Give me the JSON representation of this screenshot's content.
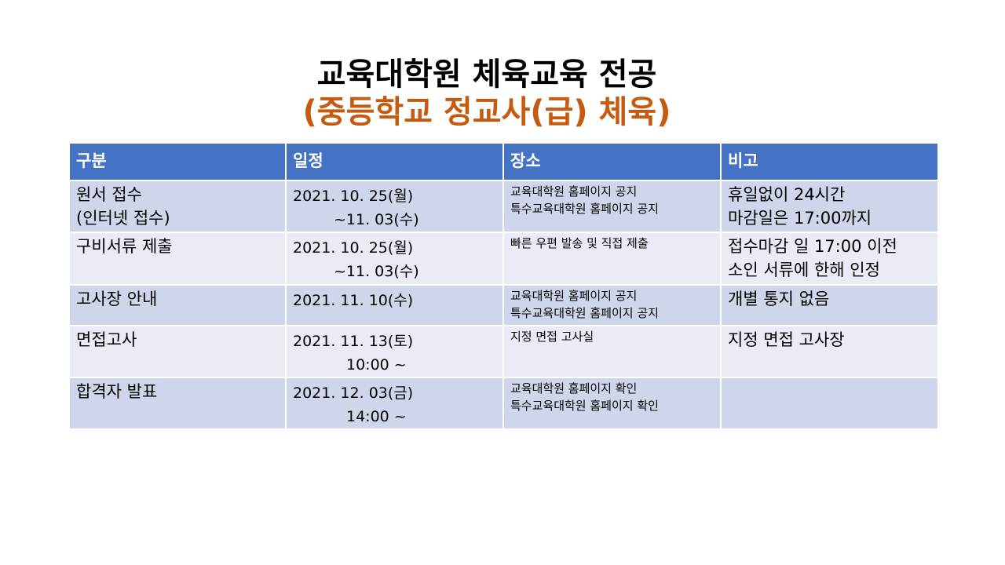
{
  "title": "교육대학원 체육교육 전공",
  "subtitle": "(중등학교 정교사(급) 체육)",
  "colors": {
    "title": "#000000",
    "subtitle": "#c55a11",
    "header_bg": "#4472c4",
    "row_odd": "#cfd5ea",
    "row_even": "#e9ebf5"
  },
  "table": {
    "headers": [
      "구분",
      "일정",
      "장소",
      "비고"
    ],
    "rows": [
      {
        "category": [
          "원서 접수",
          "(인터넷 접수)"
        ],
        "schedule": [
          "2021. 10. 25(월)",
          "~11. 03(수)"
        ],
        "place": [
          "교육대학원 홈페이지 공지",
          "특수교육대학원 홈페이지 공지"
        ],
        "note": [
          "휴일없이 24시간",
          "마감일은 17:00까지"
        ]
      },
      {
        "category": [
          "구비서류 제출"
        ],
        "schedule": [
          "2021. 10. 25(월)",
          "~11. 03(수)"
        ],
        "place": [
          "빠른 우편 발송 및 직접 제출"
        ],
        "note": [
          "접수마감 일 17:00 이전",
          "소인 서류에 한해 인정"
        ]
      },
      {
        "category": [
          "고사장 안내"
        ],
        "schedule": [
          "2021. 11. 10(수)"
        ],
        "place": [
          "교육대학원 홈페이지 공지",
          "특수교육대학원 홈페이지 공지"
        ],
        "note": [
          "개별 통지 없음"
        ]
      },
      {
        "category": [
          "면접고사"
        ],
        "schedule": [
          "2021. 11. 13(토)",
          "10:00 ~"
        ],
        "place": [
          "지정 면접 고사실"
        ],
        "note": [
          "지정 면접 고사장"
        ]
      },
      {
        "category": [
          "합격자 발표"
        ],
        "schedule": [
          "2021. 12. 03(금)",
          "14:00 ~"
        ],
        "place": [
          "교육대학원 홈페이지 확인",
          "특수교육대학원 홈페이지 확인"
        ],
        "note": []
      }
    ]
  }
}
